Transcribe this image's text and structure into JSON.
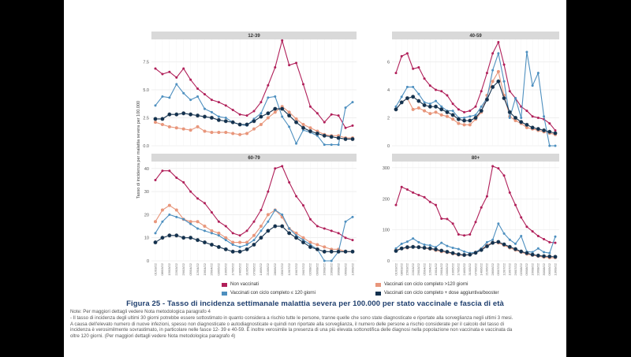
{
  "y_axis_label": "Tasso di incidenza per malattia severa per 100.000",
  "legend": [
    {
      "name": "Non vaccinati",
      "color": "#b01f59"
    },
    {
      "name": "Vaccinati con ciclo completo >120 giorni",
      "color": "#e8967b"
    },
    {
      "name": "Vaccinati con ciclo completo ≤ 120 giorni",
      "color": "#4d8fbf"
    },
    {
      "name": "Vaccinati con ciclo completo + dose aggiuntiva/booster",
      "color": "#12314f"
    }
  ],
  "figure_title": "Figura 25 - Tasso di incidenza settimanale malattia severa per 100.000 per stato vaccinale e fascia di età",
  "notes": [
    "Note: Per maggiori dettagli vedere Nota metodologica paragrafo 4",
    "- Il tasso di incidenza degli ultimi 30 giorni potrebbe essere sottostimato in quanto considera a rischio tutte le persone, tranne quelle che sono state diagnosticate e riportate alla sorveglianza negli ultimi 3 mesi.",
    "A causa dell'elevato numero di nuove infezioni, spesso non diagnosticate o autodiagnosticate e quindi non riportate alla sorveglianza, il numero delle persone a rischio considerate per il calcolo del tasso di",
    "incidenza è verosimilmente sovrastimato, in particolare nelle fasce 12- 39 e 40-59. È inoltre verosimile la presenza di una più elevata sottonotifica delle diagnosi nella popolazione non vaccinata e vaccinata da",
    "oltre 120 giorni. (Per maggiori dettagli vedere Nota metodologica paragrafo 4)"
  ],
  "chart_data": [
    {
      "type": "line",
      "title": "12-39",
      "ylabel": "Tasso di incidenza per malattia severa per 100.000",
      "ylim": [
        0,
        9.5
      ],
      "yticks": [
        0,
        2.5,
        5,
        7.5
      ],
      "ytick_labels": [
        "0.0",
        "2.5",
        "5.0",
        "7.5"
      ],
      "categories": [
        "01/03/22",
        "08/03/22",
        "15/03/22",
        "22/03/22",
        "29/03/22",
        "05/04/22",
        "12/04/22",
        "19/04/22",
        "26/04/22",
        "03/05/22",
        "10/05/22",
        "17/05/22",
        "24/05/22",
        "31/05/22",
        "07/06/22",
        "14/06/22",
        "21/06/22",
        "28/06/22",
        "05/07/22",
        "12/07/22",
        "19/07/22",
        "26/07/22",
        "02/08/22",
        "09/08/22",
        "16/08/22",
        "23/08/22",
        "30/08/22",
        "06/09/22",
        "13/09/22"
      ],
      "series": [
        {
          "name": "Non vaccinati",
          "values": [
            6.9,
            6.4,
            6.6,
            6.1,
            6.9,
            5.9,
            5.1,
            4.6,
            4.1,
            3.9,
            3.6,
            3.2,
            2.8,
            2.7,
            3.1,
            3.9,
            5.4,
            7.0,
            9.4,
            7.2,
            7.4,
            5.5,
            3.5,
            2.9,
            2.1,
            2.8,
            2.7,
            1.6,
            1.8
          ]
        },
        {
          "name": "Vaccinati con ciclo completo >120 giorni",
          "values": [
            2.1,
            1.9,
            1.7,
            1.6,
            1.5,
            1.4,
            1.7,
            1.3,
            1.2,
            1.2,
            1.2,
            1.1,
            1.0,
            1.1,
            1.5,
            1.9,
            2.5,
            3.0,
            3.5,
            3.0,
            2.4,
            1.9,
            1.6,
            1.3,
            1.0,
            0.9,
            0.9,
            0.7,
            0.7
          ]
        },
        {
          "name": "Vaccinati con ciclo completo ≤ 120 giorni",
          "values": [
            3.6,
            4.4,
            4.3,
            5.5,
            4.7,
            4.1,
            4.4,
            3.3,
            3.0,
            2.6,
            2.5,
            2.1,
            1.9,
            1.8,
            2.4,
            2.9,
            4.3,
            4.4,
            2.6,
            1.7,
            0.2,
            1.4,
            1.2,
            0.9,
            0.1,
            0.1,
            0.1,
            3.4,
            3.9
          ]
        },
        {
          "name": "Vaccinati con ciclo completo + dose aggiuntiva/booster",
          "values": [
            2.4,
            2.4,
            2.8,
            2.8,
            2.9,
            2.8,
            2.7,
            2.6,
            2.5,
            2.3,
            2.2,
            2.1,
            1.9,
            1.9,
            2.2,
            2.6,
            2.9,
            3.3,
            3.3,
            2.7,
            2.1,
            1.6,
            1.3,
            1.1,
            0.9,
            0.8,
            0.7,
            0.6,
            0.6
          ]
        }
      ]
    },
    {
      "type": "line",
      "title": "40-59",
      "ylim": [
        0,
        7.6
      ],
      "yticks": [
        0,
        2,
        4,
        6
      ],
      "ytick_labels": [
        "0",
        "2",
        "4",
        "6"
      ],
      "categories": [
        "01/03/22",
        "08/03/22",
        "15/03/22",
        "22/03/22",
        "29/03/22",
        "05/04/22",
        "12/04/22",
        "19/04/22",
        "26/04/22",
        "03/05/22",
        "10/05/22",
        "17/05/22",
        "24/05/22",
        "31/05/22",
        "07/06/22",
        "14/06/22",
        "21/06/22",
        "28/06/22",
        "05/07/22",
        "12/07/22",
        "19/07/22",
        "26/07/22",
        "02/08/22",
        "09/08/22",
        "16/08/22",
        "23/08/22",
        "30/08/22",
        "06/09/22",
        "13/09/22"
      ],
      "series": [
        {
          "name": "Non vaccinati",
          "values": [
            5.2,
            6.4,
            6.6,
            5.5,
            5.6,
            4.8,
            4.3,
            4.0,
            3.9,
            3.6,
            3.0,
            2.6,
            2.4,
            2.5,
            2.8,
            3.9,
            5.2,
            6.6,
            7.4,
            5.8,
            3.9,
            3.4,
            2.8,
            2.5,
            2.1,
            2.0,
            1.9,
            1.6,
            1.1
          ]
        },
        {
          "name": "Vaccinati con ciclo completo >120 giorni",
          "values": [
            2.6,
            3.1,
            3.4,
            2.6,
            2.7,
            2.5,
            2.3,
            2.4,
            2.2,
            2.1,
            1.9,
            1.6,
            1.5,
            1.5,
            1.9,
            2.4,
            3.6,
            4.6,
            5.3,
            3.6,
            2.1,
            1.8,
            1.6,
            1.3,
            1.2,
            1.1,
            1.0,
            0.9,
            0.8
          ]
        },
        {
          "name": "Vaccinati con ciclo completo ≤ 120 giorni",
          "values": [
            2.8,
            3.5,
            4.2,
            4.2,
            3.7,
            3.1,
            3.0,
            3.2,
            2.8,
            2.5,
            2.5,
            2.0,
            2.0,
            2.1,
            2.2,
            2.8,
            3.4,
            5.4,
            6.6,
            4.6,
            2.0,
            3.4,
            2.0,
            6.7,
            4.3,
            5.2,
            2.1,
            0.0,
            0.0
          ]
        },
        {
          "name": "Vaccinati con ciclo completo + dose aggiuntiva/booster",
          "values": [
            2.6,
            3.1,
            3.4,
            3.5,
            3.2,
            2.9,
            2.8,
            2.8,
            2.6,
            2.4,
            2.2,
            1.9,
            1.8,
            1.8,
            2.0,
            2.5,
            3.3,
            4.2,
            4.6,
            3.4,
            2.4,
            2.0,
            1.7,
            1.5,
            1.3,
            1.2,
            1.1,
            1.0,
            0.9
          ]
        }
      ]
    },
    {
      "type": "line",
      "title": "60-79",
      "ylabel": "Tasso di incidenza per malattia severa per 100.000",
      "ylim": [
        0,
        43
      ],
      "yticks": [
        0,
        10,
        20,
        30,
        40
      ],
      "ytick_labels": [
        "0",
        "10",
        "20",
        "30",
        "40"
      ],
      "categories": [
        "01/03/22",
        "08/03/22",
        "15/03/22",
        "22/03/22",
        "29/03/22",
        "05/04/22",
        "12/04/22",
        "19/04/22",
        "26/04/22",
        "03/05/22",
        "10/05/22",
        "17/05/22",
        "24/05/22",
        "31/05/22",
        "07/06/22",
        "14/06/22",
        "21/06/22",
        "28/06/22",
        "05/07/22",
        "12/07/22",
        "19/07/22",
        "26/07/22",
        "02/08/22",
        "09/08/22",
        "16/08/22",
        "23/08/22",
        "30/08/22",
        "06/09/22",
        "13/09/22"
      ],
      "series": [
        {
          "name": "Non vaccinati",
          "values": [
            35,
            39,
            39,
            36,
            34,
            30,
            27,
            25,
            21,
            17,
            15,
            12,
            11,
            13,
            17,
            22,
            30,
            40,
            41,
            34,
            28,
            24,
            18,
            15,
            14,
            13,
            12,
            10,
            9
          ]
        },
        {
          "name": "Vaccinati con ciclo completo >120 giorni",
          "values": [
            17,
            22,
            24,
            22,
            18,
            17,
            17,
            15,
            13,
            12,
            10,
            8,
            8,
            8,
            11,
            15,
            20,
            22,
            19,
            14,
            12,
            10,
            8,
            7,
            6,
            5,
            5,
            4,
            4
          ]
        },
        {
          "name": "Vaccinati con ciclo completo ≤ 120 giorni",
          "values": [
            12,
            17,
            20,
            19,
            18,
            16,
            14,
            13,
            12,
            11,
            9,
            7,
            6,
            7,
            9,
            13,
            17,
            22,
            20,
            14,
            11,
            9,
            7,
            5,
            0,
            0,
            4,
            17,
            19
          ]
        },
        {
          "name": "Vaccinati con ciclo completo + dose aggiuntiva/booster",
          "values": [
            8,
            10,
            11,
            11,
            10,
            10,
            9,
            8,
            7,
            6,
            5,
            4,
            4,
            5,
            7,
            10,
            13,
            15,
            15,
            12,
            10,
            8,
            6,
            5,
            4,
            4,
            4,
            4,
            4
          ]
        }
      ]
    },
    {
      "type": "line",
      "title": "80+",
      "ylim": [
        0,
        320
      ],
      "yticks": [
        0,
        100,
        200,
        300
      ],
      "ytick_labels": [
        "0",
        "100",
        "200",
        "300"
      ],
      "categories": [
        "01/03/22",
        "08/03/22",
        "15/03/22",
        "22/03/22",
        "29/03/22",
        "05/04/22",
        "12/04/22",
        "19/04/22",
        "26/04/22",
        "03/05/22",
        "10/05/22",
        "17/05/22",
        "24/05/22",
        "31/05/22",
        "07/06/22",
        "14/06/22",
        "21/06/22",
        "28/06/22",
        "05/07/22",
        "12/07/22",
        "19/07/22",
        "26/07/22",
        "02/08/22",
        "09/08/22",
        "16/08/22",
        "23/08/22",
        "30/08/22",
        "06/09/22",
        "13/09/22"
      ],
      "series": [
        {
          "name": "Non vaccinati",
          "values": [
            180,
            238,
            230,
            220,
            212,
            205,
            190,
            180,
            136,
            135,
            120,
            85,
            82,
            85,
            125,
            172,
            208,
            305,
            298,
            275,
            220,
            180,
            140,
            110,
            95,
            80,
            70,
            60,
            58
          ]
        },
        {
          "name": "Vaccinati con ciclo completo >120 giorni",
          "values": [
            35,
            40,
            42,
            45,
            44,
            41,
            38,
            34,
            30,
            27,
            23,
            19,
            18,
            20,
            28,
            38,
            50,
            60,
            58,
            50,
            42,
            35,
            28,
            22,
            18,
            15,
            12,
            10,
            10
          ]
        },
        {
          "name": "Vaccinati con ciclo completo ≤ 120 giorni",
          "values": [
            40,
            55,
            62,
            72,
            60,
            52,
            50,
            44,
            58,
            48,
            42,
            38,
            30,
            25,
            28,
            40,
            60,
            68,
            120,
            88,
            68,
            55,
            80,
            30,
            28,
            40,
            28,
            25,
            78
          ]
        },
        {
          "name": "Vaccinati con ciclo completo + dose aggiuntiva/booster",
          "values": [
            32,
            40,
            44,
            45,
            44,
            42,
            40,
            37,
            33,
            29,
            25,
            21,
            19,
            20,
            26,
            35,
            47,
            58,
            61,
            53,
            45,
            38,
            30,
            25,
            20,
            17,
            15,
            14,
            13
          ]
        }
      ]
    }
  ]
}
